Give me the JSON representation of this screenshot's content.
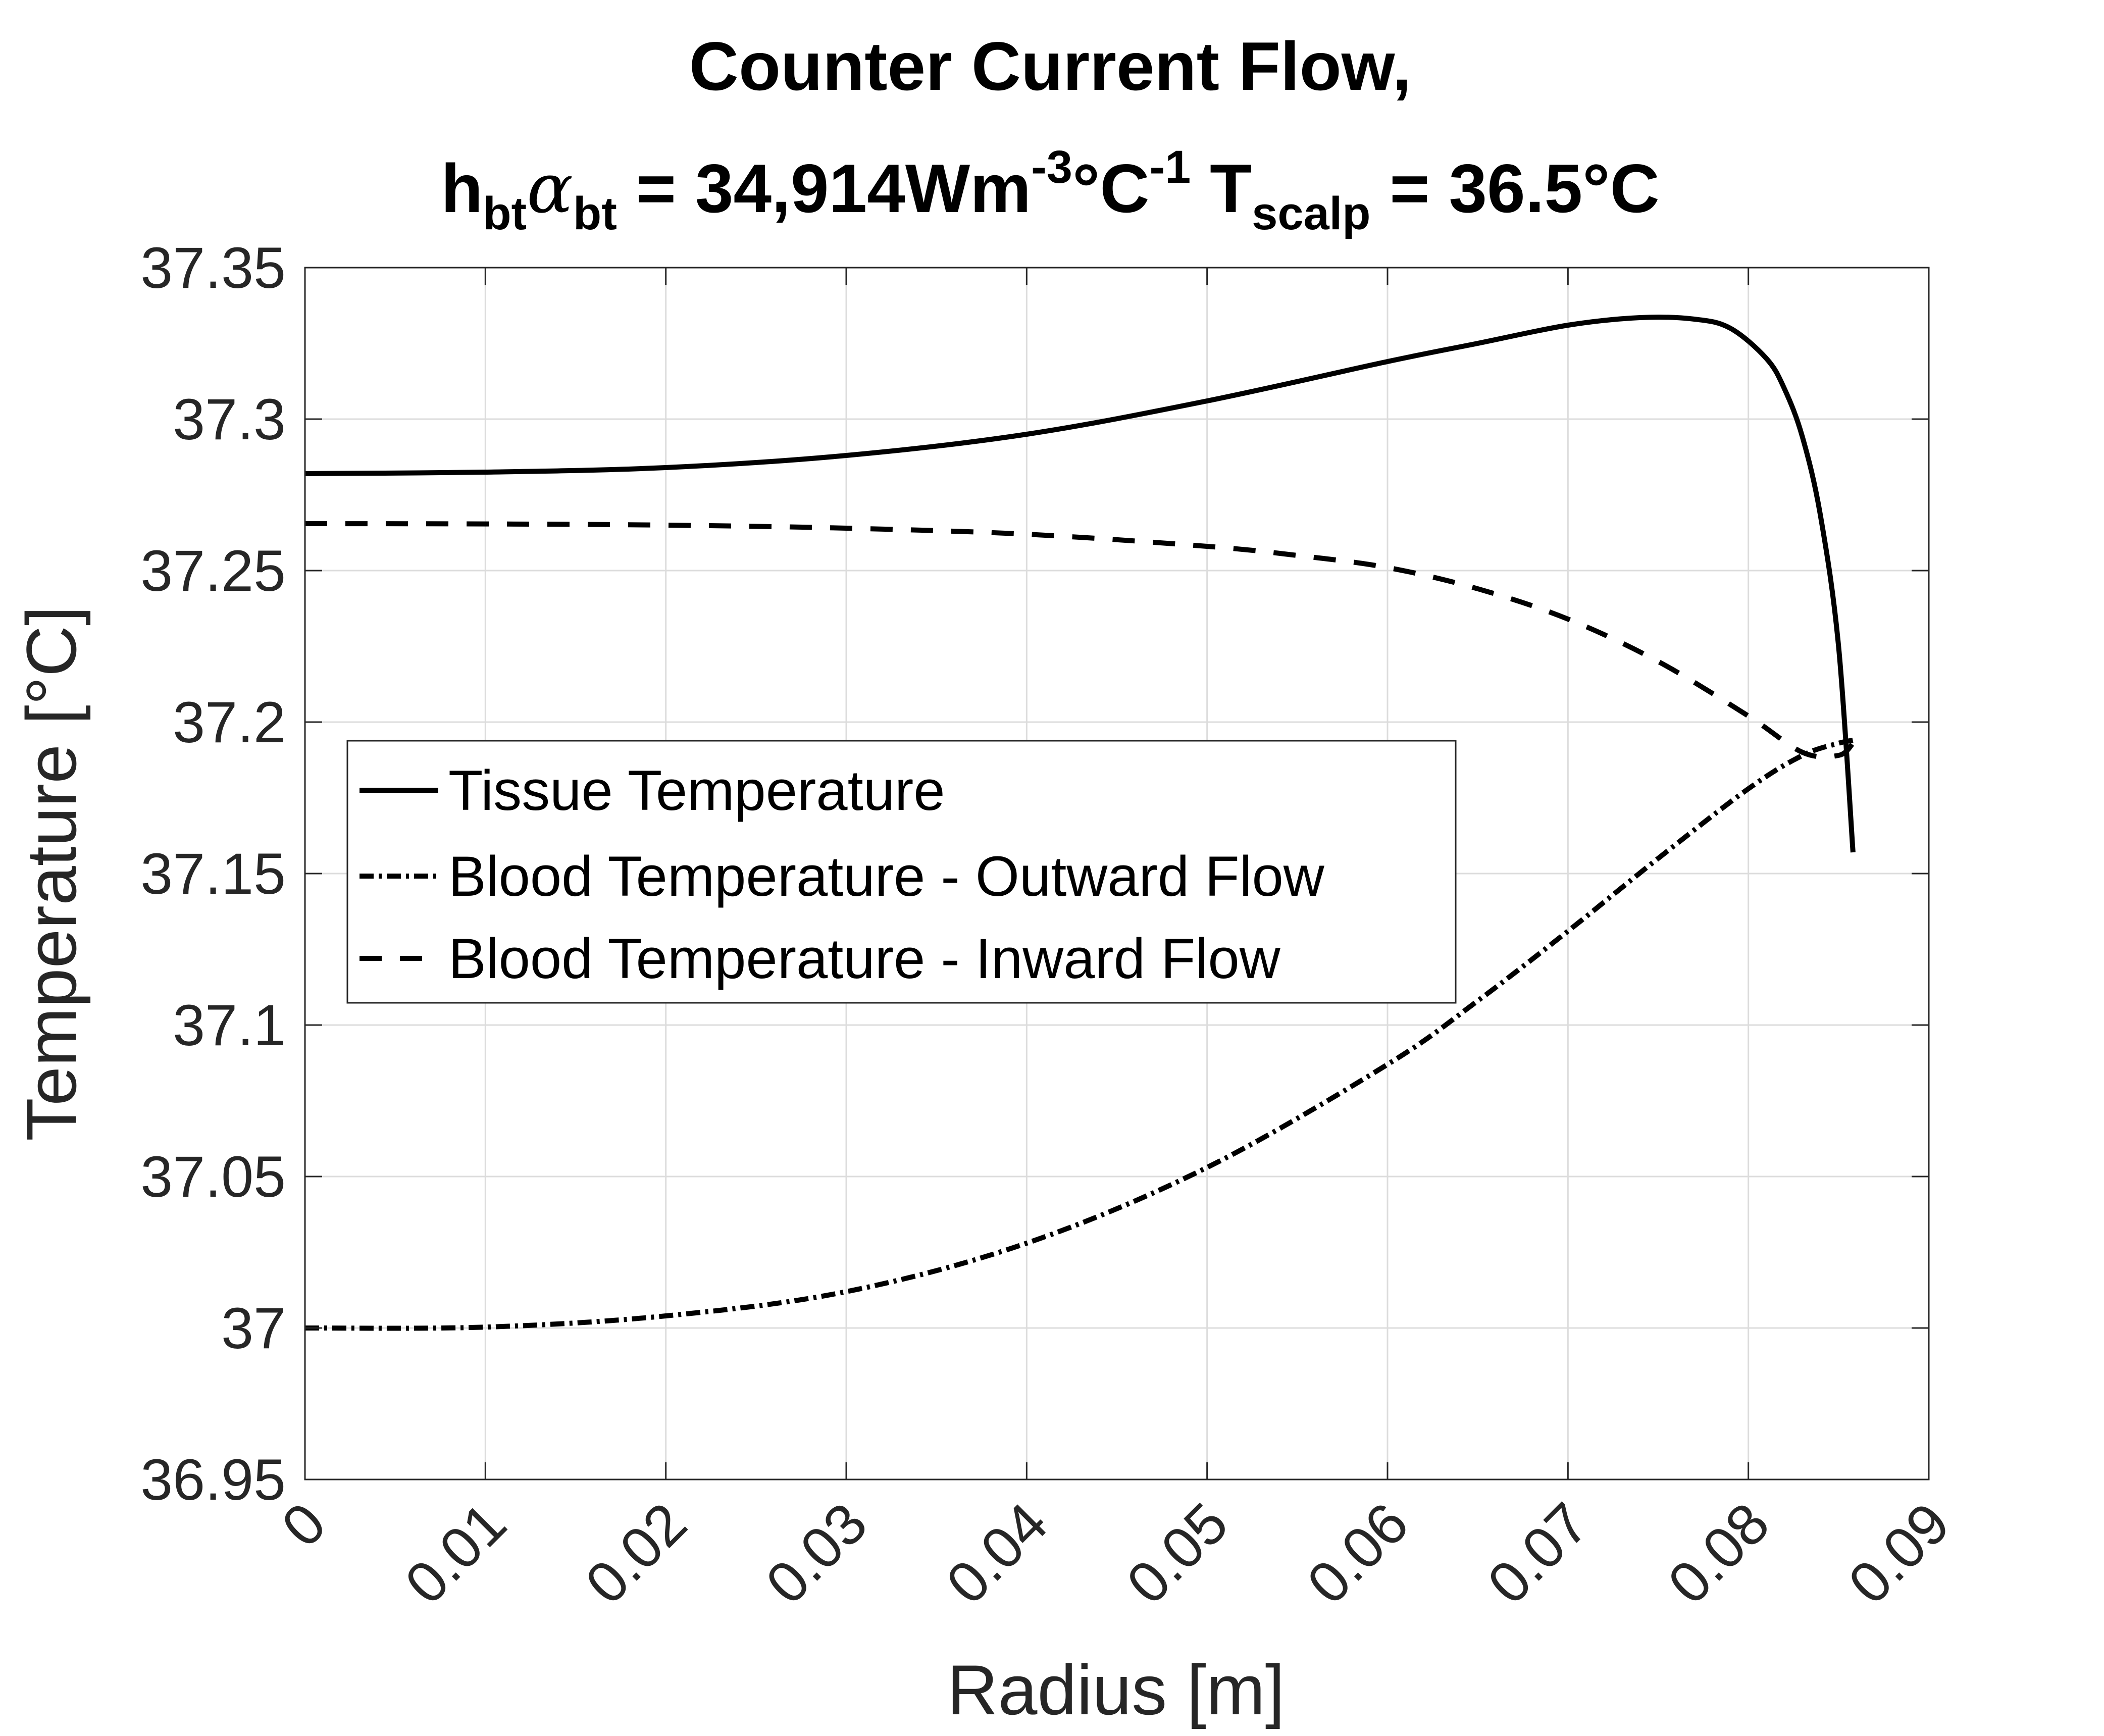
{
  "chart_data": {
    "type": "line",
    "title": "Counter Current Flow,",
    "subtitle": {
      "h": "h",
      "h_sub": "bt",
      "alpha": "α",
      "alpha_sub": "bt",
      "eq1": " = 34,914Wm",
      "exp1": "-3",
      "deg1": "°C",
      "exp2": "-1",
      "t": " T",
      "t_sub": "scalp",
      "eq2": " = 36.5°C"
    },
    "xlabel": "Radius [m]",
    "ylabel": "Temperature [°C]",
    "xlim": [
      0,
      0.09
    ],
    "ylim": [
      36.95,
      37.35
    ],
    "xticks": [
      0,
      0.01,
      0.02,
      0.03,
      0.04,
      0.05,
      0.06,
      0.07,
      0.08,
      0.09
    ],
    "xtick_labels": [
      "0",
      "0.01",
      "0.02",
      "0.03",
      "0.04",
      "0.05",
      "0.06",
      "0.07",
      "0.08",
      "0.09"
    ],
    "yticks": [
      36.95,
      37,
      37.05,
      37.1,
      37.15,
      37.2,
      37.25,
      37.3,
      37.35
    ],
    "ytick_labels": [
      "36.95",
      "37",
      "37.05",
      "37.1",
      "37.15",
      "37.2",
      "37.25",
      "37.3",
      "37.35"
    ],
    "grid": true,
    "legend_position": "middle-left",
    "series": [
      {
        "name": "Tissue Temperature",
        "style": "solid",
        "color": "#000000",
        "x": [
          0,
          0.01,
          0.02,
          0.03,
          0.04,
          0.05,
          0.06,
          0.065,
          0.07,
          0.074,
          0.077,
          0.079,
          0.081,
          0.082,
          0.083,
          0.084,
          0.085,
          0.0858
        ],
        "y": [
          37.282,
          37.2825,
          37.284,
          37.288,
          37.295,
          37.306,
          37.319,
          37.325,
          37.331,
          37.3335,
          37.333,
          37.33,
          37.32,
          37.31,
          37.294,
          37.268,
          37.225,
          37.157
        ]
      },
      {
        "name": "Blood Temperature - Outward Flow",
        "style": "dashdot",
        "color": "#000000",
        "x": [
          0,
          0.01,
          0.02,
          0.03,
          0.04,
          0.05,
          0.06,
          0.065,
          0.07,
          0.075,
          0.08,
          0.083,
          0.085,
          0.0858
        ],
        "y": [
          37.0,
          37.0003,
          37.004,
          37.012,
          37.028,
          37.053,
          37.087,
          37.108,
          37.131,
          37.155,
          37.178,
          37.189,
          37.193,
          37.194
        ]
      },
      {
        "name": "Blood Temperature - Inward Flow",
        "style": "dashed",
        "color": "#000000",
        "x": [
          0,
          0.01,
          0.02,
          0.03,
          0.04,
          0.05,
          0.055,
          0.06,
          0.065,
          0.07,
          0.075,
          0.08,
          0.083,
          0.085,
          0.0858
        ],
        "y": [
          37.2655,
          37.2654,
          37.265,
          37.264,
          37.262,
          37.258,
          37.255,
          37.251,
          37.244,
          37.234,
          37.22,
          37.202,
          37.19,
          37.189,
          37.193
        ]
      }
    ]
  }
}
